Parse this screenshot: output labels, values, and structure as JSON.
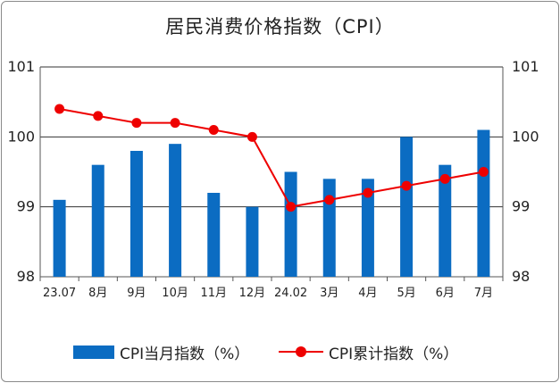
{
  "title": "居民消费价格指数（CPI）",
  "chart_data": {
    "type": "bar",
    "categories": [
      "23.07",
      "8月",
      "9月",
      "10月",
      "11月",
      "12月",
      "24.02",
      "3月",
      "4月",
      "5月",
      "6月",
      "7月"
    ],
    "series": [
      {
        "name": "CPI当月指数（%）",
        "type": "bar",
        "color": "#0b6cc2",
        "values": [
          99.1,
          99.6,
          99.8,
          99.9,
          99.2,
          99.0,
          99.5,
          99.4,
          99.4,
          100.0,
          99.6,
          100.1
        ]
      },
      {
        "name": "CPI累计指数（%）",
        "type": "line",
        "color": "#ee0000",
        "values": [
          100.4,
          100.3,
          100.2,
          100.2,
          100.1,
          100.0,
          99.0,
          99.1,
          99.2,
          99.3,
          99.4,
          99.5
        ]
      }
    ],
    "ylim": [
      98,
      101
    ],
    "yticks": [
      "98",
      "99",
      "100",
      "101"
    ],
    "ylim_right": [
      98,
      101
    ],
    "yticks_right": [
      "98",
      "99",
      "100",
      "101"
    ],
    "grid": "horizontal",
    "legend_position": "bottom"
  }
}
